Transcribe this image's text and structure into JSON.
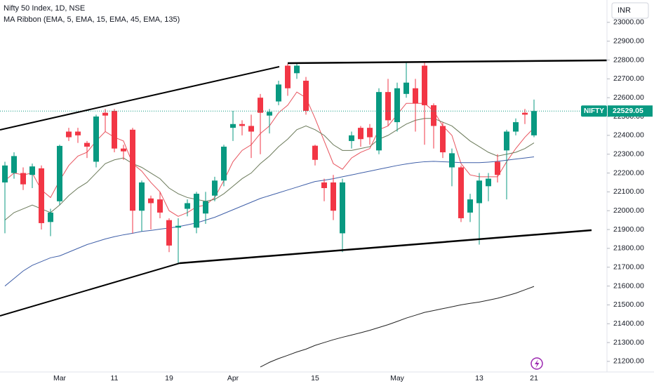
{
  "chart_data": {
    "type": "candlestick",
    "title": "Nifty 50 Index, 1D, NSE",
    "subtitle": "MA Ribbon (EMA, 5, EMA, 15, EMA, 45, EMA, 135)",
    "currency": "INR",
    "ticker": "NIFTY",
    "up_color": "#089981",
    "down_color": "#f23645",
    "categories": [
      null,
      null,
      null,
      null,
      null,
      null,
      "Mar",
      null,
      null,
      null,
      null,
      null,
      "11",
      null,
      null,
      null,
      null,
      null,
      "19",
      null,
      null,
      null,
      null,
      null,
      null,
      "Apr",
      null,
      null,
      null,
      null,
      null,
      null,
      null,
      null,
      "15",
      null,
      null,
      null,
      null,
      null,
      null,
      null,
      null,
      "May",
      null,
      null,
      null,
      null,
      null,
      null,
      null,
      null,
      "13",
      null,
      null,
      null,
      null,
      null,
      "21"
    ],
    "open": [
      22150,
      22200,
      22200,
      22190,
      22225,
      21940,
      22050,
      22420,
      22420,
      22360,
      22260,
      22520,
      22530,
      22330,
      22430,
      22000,
      22065,
      22060,
      21950,
      21910,
      22010,
      21910,
      21985,
      22080,
      22160,
      22440,
      22460,
      22450,
      22600,
      22505,
      22580,
      22770,
      22730,
      22690,
      22345,
      22150,
      22150,
      21880,
      22370,
      22440,
      22440,
      22320,
      22630,
      22470,
      22620,
      22650,
      22770,
      22560,
      22450,
      22230,
      22230,
      21990,
      22040,
      22130,
      22260,
      22320,
      22420,
      22520,
      22400
    ],
    "high": [
      22260,
      22310,
      22230,
      22250,
      22240,
      22010,
      22350,
      22440,
      22440,
      22370,
      22510,
      22540,
      22540,
      22350,
      22440,
      22160,
      22080,
      22100,
      21960,
      21960,
      22060,
      22100,
      22100,
      22180,
      22350,
      22530,
      22480,
      22510,
      22620,
      22540,
      22690,
      22780,
      22780,
      22710,
      22350,
      22170,
      22190,
      22170,
      22420,
      22450,
      22460,
      22650,
      22700,
      22680,
      22790,
      22700,
      22790,
      22570,
      22470,
      22330,
      22240,
      22090,
      22200,
      22200,
      22300,
      22430,
      22490,
      22540,
      22590
    ],
    "low": [
      21880,
      22170,
      22110,
      22120,
      21900,
      21865,
      22030,
      22370,
      22360,
      22280,
      22230,
      22420,
      22310,
      22270,
      21880,
      21890,
      21900,
      21960,
      21780,
      21722,
      21970,
      21880,
      21930,
      22050,
      22130,
      22370,
      22400,
      22280,
      22300,
      22410,
      22560,
      22610,
      22700,
      22510,
      22240,
      22050,
      21950,
      21780,
      22330,
      22340,
      22350,
      22300,
      22450,
      22420,
      22600,
      22420,
      22350,
      22330,
      22280,
      22130,
      21940,
      21940,
      21820,
      22050,
      22150,
      22060,
      22400,
      22460,
      22390
    ],
    "close": [
      22240,
      22290,
      22140,
      22235,
      21934,
      21990,
      22344,
      22390,
      22400,
      22340,
      22500,
      22505,
      22330,
      22315,
      22000,
      22150,
      22040,
      21990,
      21815,
      21920,
      22040,
      22090,
      22050,
      22160,
      22340,
      22460,
      22450,
      22420,
      22520,
      22525,
      22670,
      22650,
      22770,
      22530,
      22270,
      22120,
      22000,
      22150,
      22400,
      22380,
      22390,
      22630,
      22480,
      22650,
      22680,
      22570,
      22560,
      22450,
      22310,
      22305,
      21960,
      22060,
      22160,
      22170,
      22190,
      22420,
      22470,
      22510,
      22529.05
    ],
    "series": [
      {
        "color": "#e8545e",
        "values": [
          22160,
          22200,
          22190,
          22200,
          22110,
          22070,
          22160,
          22240,
          22290,
          22310,
          22370,
          22420,
          22390,
          22370,
          22250,
          22210,
          22150,
          22100,
          22000,
          21970,
          21990,
          22020,
          22030,
          22070,
          22160,
          22260,
          22320,
          22350,
          22410,
          22450,
          22520,
          22560,
          22630,
          22600,
          22490,
          22370,
          22250,
          22220,
          22280,
          22310,
          22330,
          22430,
          22450,
          22510,
          22570,
          22570,
          22570,
          22530,
          22450,
          22400,
          22250,
          22190,
          22180,
          22180,
          22180,
          22260,
          22330,
          22390,
          22440
        ]
      },
      {
        "color": "#6b7a5a",
        "values": [
          21950,
          21990,
          22010,
          22030,
          22010,
          21990,
          22030,
          22080,
          22120,
          22150,
          22200,
          22250,
          22270,
          22280,
          22250,
          22230,
          22200,
          22170,
          22120,
          22090,
          22070,
          22060,
          22050,
          22060,
          22090,
          22130,
          22170,
          22200,
          22250,
          22290,
          22340,
          22380,
          22430,
          22450,
          22430,
          22400,
          22350,
          22320,
          22320,
          22330,
          22340,
          22380,
          22400,
          22430,
          22460,
          22480,
          22490,
          22490,
          22470,
          22450,
          22410,
          22370,
          22340,
          22310,
          22290,
          22300,
          22310,
          22330,
          22360
        ]
      },
      {
        "color": "#3f5fa8",
        "values": [
          21600,
          21640,
          21680,
          21710,
          21730,
          21750,
          21760,
          21780,
          21800,
          21820,
          21835,
          21850,
          21862,
          21872,
          21880,
          21890,
          21895,
          21902,
          21908,
          21915,
          21925,
          21935,
          21950,
          21965,
          21985,
          22005,
          22025,
          22045,
          22065,
          22080,
          22095,
          22110,
          22125,
          22140,
          22155,
          22162,
          22170,
          22180,
          22190,
          22200,
          22210,
          22220,
          22230,
          22240,
          22248,
          22255,
          22260,
          22262,
          22260,
          22258,
          22255,
          22255,
          22255,
          22258,
          22262,
          22268,
          22274,
          22280,
          22286
        ]
      },
      {
        "color": "#222222",
        "values": [
          null,
          null,
          null,
          null,
          null,
          null,
          null,
          null,
          null,
          null,
          null,
          null,
          null,
          null,
          null,
          null,
          null,
          null,
          null,
          null,
          null,
          null,
          null,
          null,
          null,
          null,
          null,
          null,
          21170,
          21195,
          21215,
          21232,
          21250,
          21265,
          21285,
          21300,
          21315,
          21328,
          21340,
          21352,
          21365,
          21380,
          21395,
          21412,
          21430,
          21445,
          21460,
          21470,
          21480,
          21490,
          21500,
          21508,
          21515,
          21525,
          21535,
          21548,
          21562,
          21580,
          21598
        ]
      }
    ],
    "ylim": [
      21155,
      23100
    ],
    "yticks": [
      {
        "value": 21200,
        "label": "21200.00"
      },
      {
        "value": 21300,
        "label": "21300.00"
      },
      {
        "value": 21400,
        "label": "21400.00"
      },
      {
        "value": 21500,
        "label": "21500.00"
      },
      {
        "value": 21600,
        "label": "21600.00"
      },
      {
        "value": 21700,
        "label": "21700.00"
      },
      {
        "value": 21800,
        "label": "21800.00"
      },
      {
        "value": 21900,
        "label": "21900.00"
      },
      {
        "value": 22000,
        "label": "22000.00"
      },
      {
        "value": 22100,
        "label": "22100.00"
      },
      {
        "value": 22200,
        "label": "22200.00"
      },
      {
        "value": 22300,
        "label": "22300.00"
      },
      {
        "value": 22400,
        "label": "22400.00"
      },
      {
        "value": 22500,
        "label": "22500.00"
      },
      {
        "value": 22600,
        "label": "22600.00"
      },
      {
        "value": 22700,
        "label": "22700.00"
      },
      {
        "value": 22800,
        "label": "22800.00"
      },
      {
        "value": 22900,
        "label": "22900.00"
      },
      {
        "value": 23000,
        "label": "23000.00"
      }
    ]
  }
}
